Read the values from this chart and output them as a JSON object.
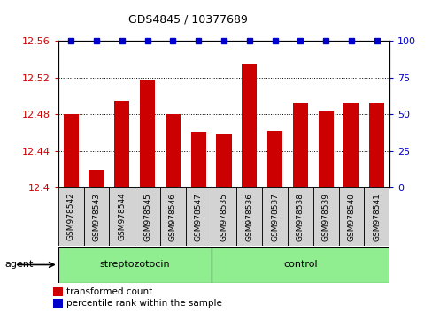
{
  "title": "GDS4845 / 10377689",
  "samples": [
    "GSM978542",
    "GSM978543",
    "GSM978544",
    "GSM978545",
    "GSM978546",
    "GSM978547",
    "GSM978535",
    "GSM978536",
    "GSM978537",
    "GSM978538",
    "GSM978539",
    "GSM978540",
    "GSM978541"
  ],
  "values": [
    12.48,
    12.42,
    12.495,
    12.518,
    12.48,
    12.461,
    12.458,
    12.535,
    12.462,
    12.493,
    12.483,
    12.493,
    12.493
  ],
  "bar_color": "#cc0000",
  "percentile_color": "#0000cc",
  "ylim_left": [
    12.4,
    12.56
  ],
  "ylim_right": [
    0,
    100
  ],
  "yticks_left": [
    12.4,
    12.44,
    12.48,
    12.52,
    12.56
  ],
  "yticks_right": [
    0,
    25,
    50,
    75,
    100
  ],
  "group1_count": 6,
  "group2_count": 7,
  "group1_label": "streptozotocin",
  "group2_label": "control",
  "group_color": "#90EE90",
  "agent_label": "agent",
  "legend_tc_label": "transformed count",
  "legend_pr_label": "percentile rank within the sample",
  "bar_width": 0.6,
  "baseline": 12.4
}
